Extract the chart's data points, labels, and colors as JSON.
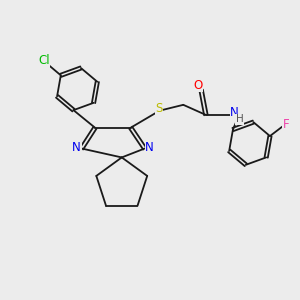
{
  "background_color": "#ececec",
  "bond_color": "#1a1a1a",
  "atoms": {
    "Cl": {
      "color": "#00bb00",
      "fontsize": 8.5
    },
    "F": {
      "color": "#ee44aa",
      "fontsize": 8.5
    },
    "O": {
      "color": "#ff0000",
      "fontsize": 8.5
    },
    "N": {
      "color": "#0000ee",
      "fontsize": 8.5
    },
    "S": {
      "color": "#bbbb00",
      "fontsize": 8.5
    },
    "H": {
      "color": "#555555",
      "fontsize": 7.5
    },
    "C": {
      "color": "#1a1a1a",
      "fontsize": 8.5
    }
  },
  "figsize": [
    3.0,
    3.0
  ],
  "dpi": 100
}
